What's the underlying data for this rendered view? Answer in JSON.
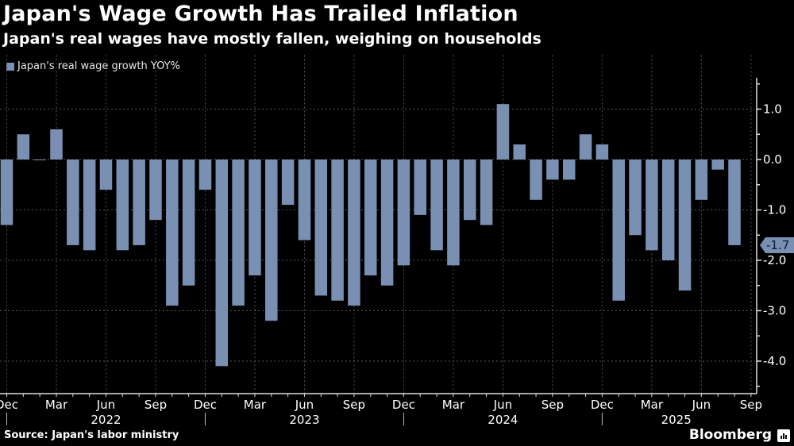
{
  "header": {
    "title": "Japan's Wage Growth Has Trailed Inflation",
    "subtitle": "Japan's real wages have mostly fallen, weighing on households"
  },
  "footer": {
    "source": "Source: Japan's labor ministry",
    "brand": "Bloomberg",
    "brand_icon": "bloomberg-chart-icon"
  },
  "colors": {
    "bar": "#7990b3",
    "background": "#000000",
    "grid": "#555555",
    "text": "#ffffff"
  },
  "chart_data": {
    "type": "bar",
    "title": "Japan's Wage Growth Has Trailed Inflation",
    "subtitle": "Japan's real wages have mostly fallen, weighing on households",
    "xlabel": "",
    "ylabel": "",
    "legend": {
      "entries": [
        "Japan's real wage growth YOY%"
      ],
      "placement": "top-left"
    },
    "ylim": [
      -4.6,
      1.6
    ],
    "yticks": [
      1.0,
      0.0,
      -1.0,
      -2.0,
      -3.0,
      -4.0
    ],
    "ytick_labels": [
      "1.0",
      "0.0",
      "-1.0",
      "-2.0",
      "-3.0",
      "-4.0"
    ],
    "y_axis_side": "right",
    "grid": true,
    "callout": {
      "label": "-1.7",
      "value": -1.7
    },
    "x_month_ticks": [
      {
        "label": "Dec",
        "index": 0
      },
      {
        "label": "Mar",
        "index": 3
      },
      {
        "label": "Jun",
        "index": 6
      },
      {
        "label": "Sep",
        "index": 9
      },
      {
        "label": "Dec",
        "index": 12
      },
      {
        "label": "Mar",
        "index": 15
      },
      {
        "label": "Jun",
        "index": 18
      },
      {
        "label": "Sep",
        "index": 21
      },
      {
        "label": "Dec",
        "index": 24
      },
      {
        "label": "Mar",
        "index": 27
      },
      {
        "label": "Jun",
        "index": 30
      },
      {
        "label": "Sep",
        "index": 33
      },
      {
        "label": "Dec",
        "index": 36
      },
      {
        "label": "Mar",
        "index": 39
      },
      {
        "label": "Jun",
        "index": 42
      },
      {
        "label": "Sep",
        "index": 45
      }
    ],
    "x_year_labels": [
      {
        "label": "2022",
        "index": 6
      },
      {
        "label": "2023",
        "index": 18
      },
      {
        "label": "2024",
        "index": 30
      },
      {
        "label": "2025",
        "index": 40
      }
    ],
    "categories": [
      "2021-12",
      "2022-01",
      "2022-02",
      "2022-03",
      "2022-04",
      "2022-05",
      "2022-06",
      "2022-07",
      "2022-08",
      "2022-09",
      "2022-10",
      "2022-11",
      "2022-12",
      "2023-01",
      "2023-02",
      "2023-03",
      "2023-04",
      "2023-05",
      "2023-06",
      "2023-07",
      "2023-08",
      "2023-09",
      "2023-10",
      "2023-11",
      "2023-12",
      "2024-01",
      "2024-02",
      "2024-03",
      "2024-04",
      "2024-05",
      "2024-06",
      "2024-07",
      "2024-08",
      "2024-09",
      "2024-10",
      "2024-11",
      "2024-12",
      "2025-01",
      "2025-02",
      "2025-03",
      "2025-04",
      "2025-05",
      "2025-06",
      "2025-07",
      "2025-08"
    ],
    "series": [
      {
        "name": "Japan's real wage growth YOY%",
        "values": [
          -1.3,
          0.5,
          0.0,
          0.6,
          -1.7,
          -1.8,
          -0.6,
          -1.8,
          -1.7,
          -1.2,
          -2.9,
          -2.5,
          -0.6,
          -4.1,
          -2.9,
          -2.3,
          -3.2,
          -0.9,
          -1.6,
          -2.7,
          -2.8,
          -2.9,
          -2.3,
          -2.5,
          -2.1,
          -1.1,
          -1.8,
          -2.1,
          -1.2,
          -1.3,
          1.1,
          0.3,
          -0.8,
          -0.4,
          -0.4,
          0.5,
          0.3,
          -2.8,
          -1.5,
          -1.8,
          -2.0,
          -2.6,
          -0.8,
          -0.2,
          -1.7
        ]
      }
    ]
  }
}
